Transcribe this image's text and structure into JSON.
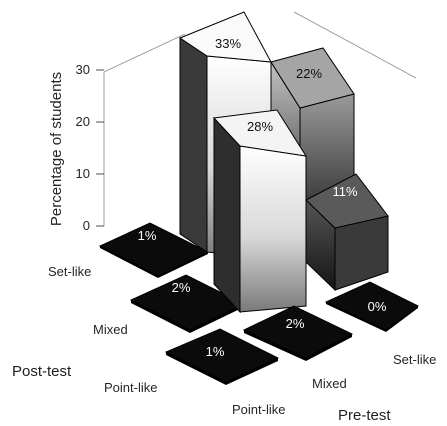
{
  "chart_data": {
    "type": "bar3d",
    "ylabel": "Percentage of students",
    "xlabel": "Pre-test",
    "zlabel": "Post-test",
    "ylim": [
      0,
      35
    ],
    "yticks": [
      0,
      10,
      20,
      30
    ],
    "pre_test_categories": [
      "Point-like",
      "Mixed",
      "Set-like"
    ],
    "post_test_categories": [
      "Set-like",
      "Mixed",
      "Point-like"
    ],
    "cells": [
      {
        "pre": "Set-like",
        "post": "Set-like",
        "value": 1,
        "label": "1%"
      },
      {
        "pre": "Set-like",
        "post": "Mixed",
        "value": 2,
        "label": "2%"
      },
      {
        "pre": "Set-like",
        "post": "Point-like",
        "value": 1,
        "label": "1%"
      },
      {
        "pre": "Mixed",
        "post": "Set-like",
        "value": 33,
        "label": "33%"
      },
      {
        "pre": "Mixed",
        "post": "Mixed",
        "value": 28,
        "label": "28%"
      },
      {
        "pre": "Mixed",
        "post": "Point-like",
        "value": 2,
        "label": "2%"
      },
      {
        "pre": "Point-like",
        "post": "Set-like",
        "value": 22,
        "label": "22%"
      },
      {
        "pre": "Point-like",
        "post": "Mixed",
        "value": 11,
        "label": "11%"
      },
      {
        "pre": "Point-like",
        "post": "Point-like",
        "value": 0,
        "label": "0%"
      }
    ]
  }
}
